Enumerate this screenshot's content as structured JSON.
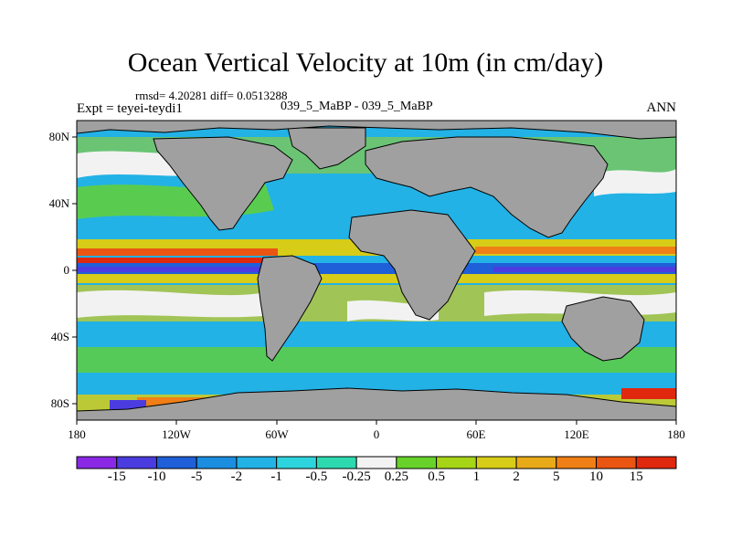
{
  "title": "Ocean Vertical Velocity at 10m (in cm/day)",
  "stats": "rmsd= 4.20281  diff= 0.0513288",
  "expt": "Expt = teyei-teydi1",
  "subtitle": "039_5_MaBP - 039_5_MaBP",
  "season": "ANN",
  "lat_labels": [
    "80N",
    "40N",
    "0",
    "40S",
    "80S"
  ],
  "lon_labels": [
    "180",
    "120W",
    "60W",
    "0",
    "60E",
    "120E",
    "180"
  ],
  "colorbar": {
    "colors": [
      "#8a28e6",
      "#4b3ce0",
      "#1f5fd8",
      "#1b8ee0",
      "#22b2e6",
      "#2ed4dd",
      "#2ed9b0",
      "#f2f2f2",
      "#68d22a",
      "#a6d416",
      "#d7cc18",
      "#e8aa18",
      "#ef7f16",
      "#ea5512",
      "#e0280e"
    ],
    "labels": [
      "-15",
      "-10",
      "-5",
      "-2",
      "-1",
      "-0.5",
      "-0.25",
      "0.25",
      "0.5",
      "1",
      "2",
      "5",
      "10",
      "15"
    ]
  },
  "colors": {
    "land": "#a0a0a0",
    "ocean_background": "#22b2e6"
  }
}
